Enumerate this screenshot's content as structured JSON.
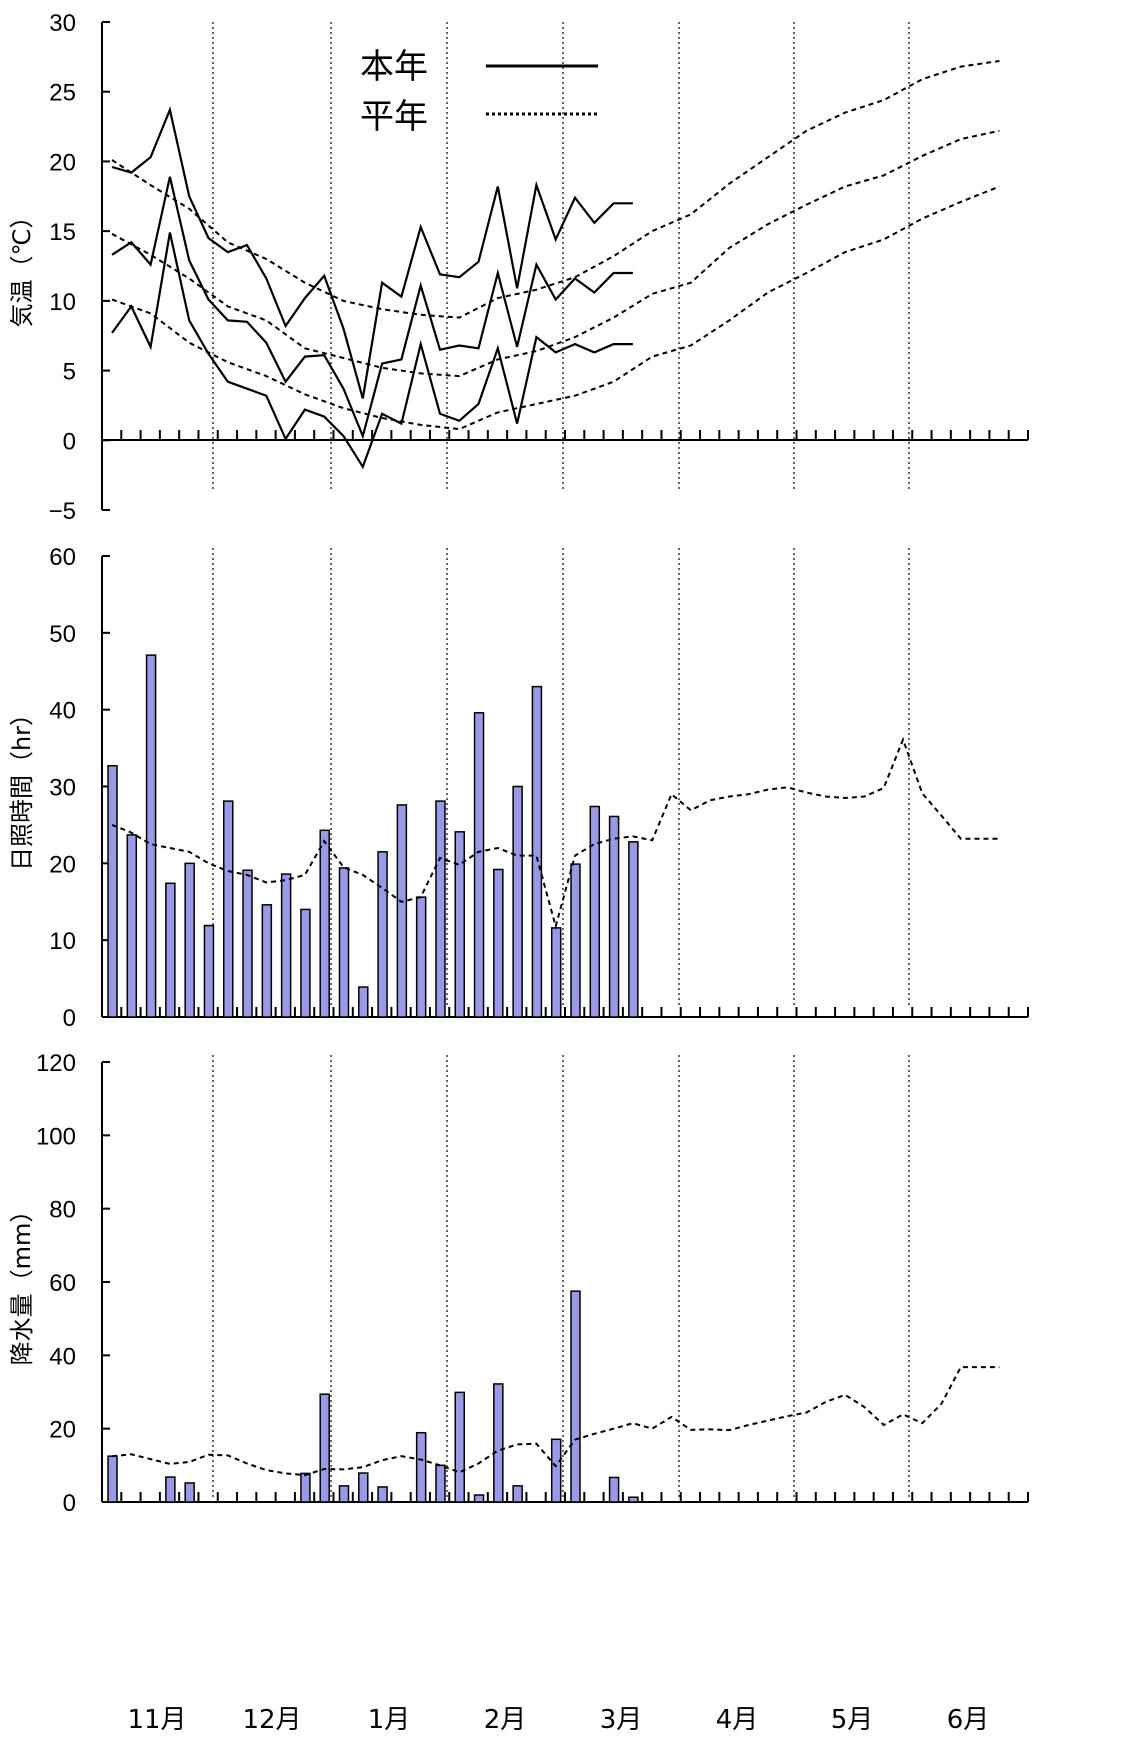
{
  "months": [
    "11月",
    "12月",
    "1月",
    "2月",
    "3月",
    "4月",
    "5月",
    "6月"
  ],
  "legend": {
    "this_year": "本年",
    "normal": "平年"
  },
  "colors": {
    "bar_fill": "#9999e6",
    "bar_stroke": "#000000",
    "line": "#000000"
  },
  "chart_data": [
    {
      "type": "line",
      "ylabel": "気温（℃）",
      "ylim": [
        -5,
        30
      ],
      "yticks": [
        -5,
        0,
        5,
        10,
        15,
        20,
        25,
        30
      ],
      "x_unit": "half-month period index (0 = start of 11月)",
      "legend_placement": "top-center",
      "series": [
        {
          "name": "本年",
          "style": "solid",
          "x": [
            0,
            1,
            2,
            3,
            4,
            5,
            6,
            7,
            8,
            9,
            10,
            11,
            12,
            13,
            14,
            15,
            16,
            17,
            18,
            19,
            20,
            21,
            22,
            23,
            24,
            25,
            26,
            27
          ],
          "values": [
            19.6,
            19.2,
            20.3,
            23.7,
            17.5,
            14.5,
            13.5,
            14.0,
            11.6,
            8.2,
            10.2,
            11.8,
            8.0,
            3.0,
            11.3,
            10.3,
            15.3,
            11.9,
            11.7,
            12.8,
            18.2,
            10.9,
            18.3,
            14.4,
            17.4,
            15.6,
            17.0,
            17.0
          ]
        },
        {
          "name": "本年",
          "style": "solid",
          "x": [
            0,
            1,
            2,
            3,
            4,
            5,
            6,
            7,
            8,
            9,
            10,
            11,
            12,
            13,
            14,
            15,
            16,
            17,
            18,
            19,
            20,
            21,
            22,
            23,
            24,
            25,
            26,
            27
          ],
          "values": [
            13.3,
            14.2,
            12.6,
            18.9,
            12.9,
            10.1,
            8.6,
            8.5,
            7.0,
            4.2,
            6.0,
            6.1,
            3.7,
            0.3,
            5.5,
            5.8,
            11.1,
            6.5,
            6.8,
            6.6,
            12.0,
            6.7,
            12.6,
            10.1,
            11.6,
            10.6,
            12.0,
            12.0
          ]
        },
        {
          "name": "本年",
          "style": "solid",
          "x": [
            0,
            1,
            2,
            3,
            4,
            5,
            6,
            7,
            8,
            9,
            10,
            11,
            12,
            13,
            14,
            15,
            16,
            17,
            18,
            19,
            20,
            21,
            22,
            23,
            24,
            25,
            26,
            27
          ],
          "values": [
            7.7,
            9.6,
            6.7,
            14.9,
            8.6,
            6.2,
            4.2,
            3.7,
            3.2,
            0.1,
            2.2,
            1.7,
            0.3,
            -1.9,
            1.9,
            1.2,
            6.9,
            1.9,
            1.4,
            2.6,
            6.6,
            1.2,
            7.4,
            6.3,
            6.9,
            6.3,
            6.9,
            6.9
          ]
        },
        {
          "name": "平年",
          "style": "dashed",
          "x": [
            0,
            2,
            4,
            6,
            8,
            10,
            12,
            14,
            16,
            18,
            20,
            22,
            24,
            26,
            28,
            30,
            32,
            34,
            36,
            38,
            40,
            42,
            44,
            46
          ],
          "values": [
            20.1,
            18.3,
            16.6,
            14.2,
            13.0,
            11.3,
            10.0,
            9.4,
            9.0,
            8.8,
            10.2,
            10.8,
            11.7,
            13.2,
            15.0,
            16.2,
            18.4,
            20.3,
            22.2,
            23.5,
            24.4,
            25.9,
            26.8,
            27.2
          ]
        },
        {
          "name": "平年",
          "style": "dashed",
          "x": [
            0,
            2,
            4,
            6,
            8,
            10,
            12,
            14,
            16,
            18,
            20,
            22,
            24,
            26,
            28,
            30,
            32,
            34,
            36,
            38,
            40,
            42,
            44,
            46
          ],
          "values": [
            14.8,
            13.3,
            11.6,
            9.6,
            8.6,
            6.6,
            5.9,
            5.2,
            4.8,
            4.6,
            5.8,
            6.4,
            7.4,
            8.8,
            10.5,
            11.3,
            13.8,
            15.5,
            16.9,
            18.2,
            19.0,
            20.4,
            21.6,
            22.2
          ]
        },
        {
          "name": "平年",
          "style": "dashed",
          "x": [
            0,
            2,
            4,
            6,
            8,
            10,
            12,
            14,
            16,
            18,
            20,
            22,
            24,
            26,
            28,
            30,
            32,
            34,
            36,
            38,
            40,
            42,
            44,
            46
          ],
          "values": [
            10.1,
            9.1,
            7.0,
            5.6,
            4.6,
            3.3,
            2.3,
            1.6,
            1.1,
            0.8,
            2.0,
            2.6,
            3.2,
            4.2,
            6.0,
            6.8,
            8.6,
            10.6,
            12.0,
            13.5,
            14.4,
            15.9,
            17.1,
            18.2
          ]
        }
      ]
    },
    {
      "type": "bar",
      "ylabel": "日照時間（hr）",
      "ylim": [
        0,
        60
      ],
      "yticks": [
        0,
        10,
        20,
        30,
        40,
        50,
        60
      ],
      "x_unit": "half-month period index (0 = start of 11月)",
      "bars": {
        "name": "本年",
        "x": [
          0,
          1,
          2,
          3,
          4,
          5,
          6,
          7,
          8,
          9,
          10,
          11,
          12,
          13,
          14,
          15,
          16,
          17,
          18,
          19,
          20,
          21,
          22,
          23,
          24,
          25,
          26,
          27
        ],
        "values": [
          32.7,
          23.7,
          47.1,
          17.4,
          20.0,
          11.9,
          28.1,
          19.1,
          14.6,
          18.6,
          14.0,
          24.3,
          19.4,
          3.9,
          21.5,
          27.6,
          15.6,
          28.1,
          24.1,
          39.6,
          19.2,
          30.0,
          43.0,
          11.6,
          19.9,
          27.4,
          26.1,
          22.8
        ]
      },
      "series": [
        {
          "name": "平年",
          "style": "dashed",
          "x": [
            0,
            1,
            2,
            3,
            4,
            5,
            6,
            7,
            8,
            9,
            10,
            11,
            12,
            13,
            14,
            15,
            16,
            17,
            18,
            19,
            20,
            21,
            22,
            23,
            24,
            25,
            26,
            27,
            28,
            29,
            30,
            31,
            32,
            33,
            34,
            35,
            36,
            37,
            38,
            39,
            40,
            41,
            42,
            43,
            44,
            45,
            46
          ],
          "values": [
            25.0,
            24.0,
            22.5,
            22.0,
            21.5,
            20.0,
            19.0,
            18.5,
            17.5,
            17.8,
            18.5,
            22.9,
            19.5,
            18.5,
            16.8,
            15.0,
            15.6,
            20.7,
            19.8,
            21.5,
            22.0,
            21.0,
            21.0,
            11.8,
            21.0,
            22.5,
            23.2,
            23.5,
            23.0,
            29.0,
            26.9,
            28.2,
            28.7,
            29.0,
            29.6,
            29.9,
            29.2,
            28.7,
            28.5,
            28.7,
            29.8,
            36.1,
            29.1,
            26.2,
            23.2,
            23.2,
            23.2
          ]
        }
      ]
    },
    {
      "type": "bar",
      "ylabel": "降水量（mm）",
      "ylim": [
        0,
        120
      ],
      "yticks": [
        0,
        20,
        40,
        60,
        80,
        100,
        120
      ],
      "x_unit": "half-month period index (0 = start of 11月)",
      "bars": {
        "name": "本年",
        "x": [
          0,
          1,
          2,
          3,
          4,
          5,
          6,
          7,
          8,
          9,
          10,
          11,
          12,
          13,
          14,
          15,
          16,
          17,
          18,
          19,
          20,
          21,
          22,
          23,
          24,
          25,
          26,
          27
        ],
        "values": [
          12.5,
          0,
          0,
          6.8,
          5.2,
          0,
          0,
          0,
          0,
          0,
          7.8,
          29.4,
          4.4,
          7.9,
          4.1,
          0,
          18.9,
          10.0,
          29.9,
          1.9,
          32.2,
          4.4,
          0,
          17.1,
          57.5,
          0,
          6.7,
          1.3
        ]
      },
      "series": [
        {
          "name": "平年",
          "style": "dashed",
          "x": [
            0,
            1,
            2,
            3,
            4,
            5,
            6,
            7,
            8,
            9,
            10,
            11,
            12,
            13,
            14,
            15,
            16,
            17,
            18,
            19,
            20,
            21,
            22,
            23,
            24,
            25,
            26,
            27,
            28,
            29,
            30,
            31,
            32,
            33,
            34,
            35,
            36,
            37,
            38,
            39,
            40,
            41,
            42,
            43,
            44,
            45,
            46
          ],
          "values": [
            12.5,
            13.0,
            11.7,
            10.4,
            10.9,
            12.9,
            12.7,
            10.5,
            8.7,
            7.8,
            7.3,
            9.0,
            8.9,
            9.5,
            11.4,
            12.5,
            11.6,
            10.0,
            8.1,
            10.5,
            14.0,
            15.7,
            15.9,
            9.8,
            17.0,
            18.6,
            20.0,
            21.5,
            20.0,
            23.2,
            19.7,
            19.8,
            19.6,
            21.0,
            22.2,
            23.4,
            24.4,
            27.3,
            29.2,
            25.9,
            21.0,
            23.9,
            21.5,
            26.8,
            36.8,
            36.8,
            36.8
          ]
        }
      ]
    }
  ]
}
